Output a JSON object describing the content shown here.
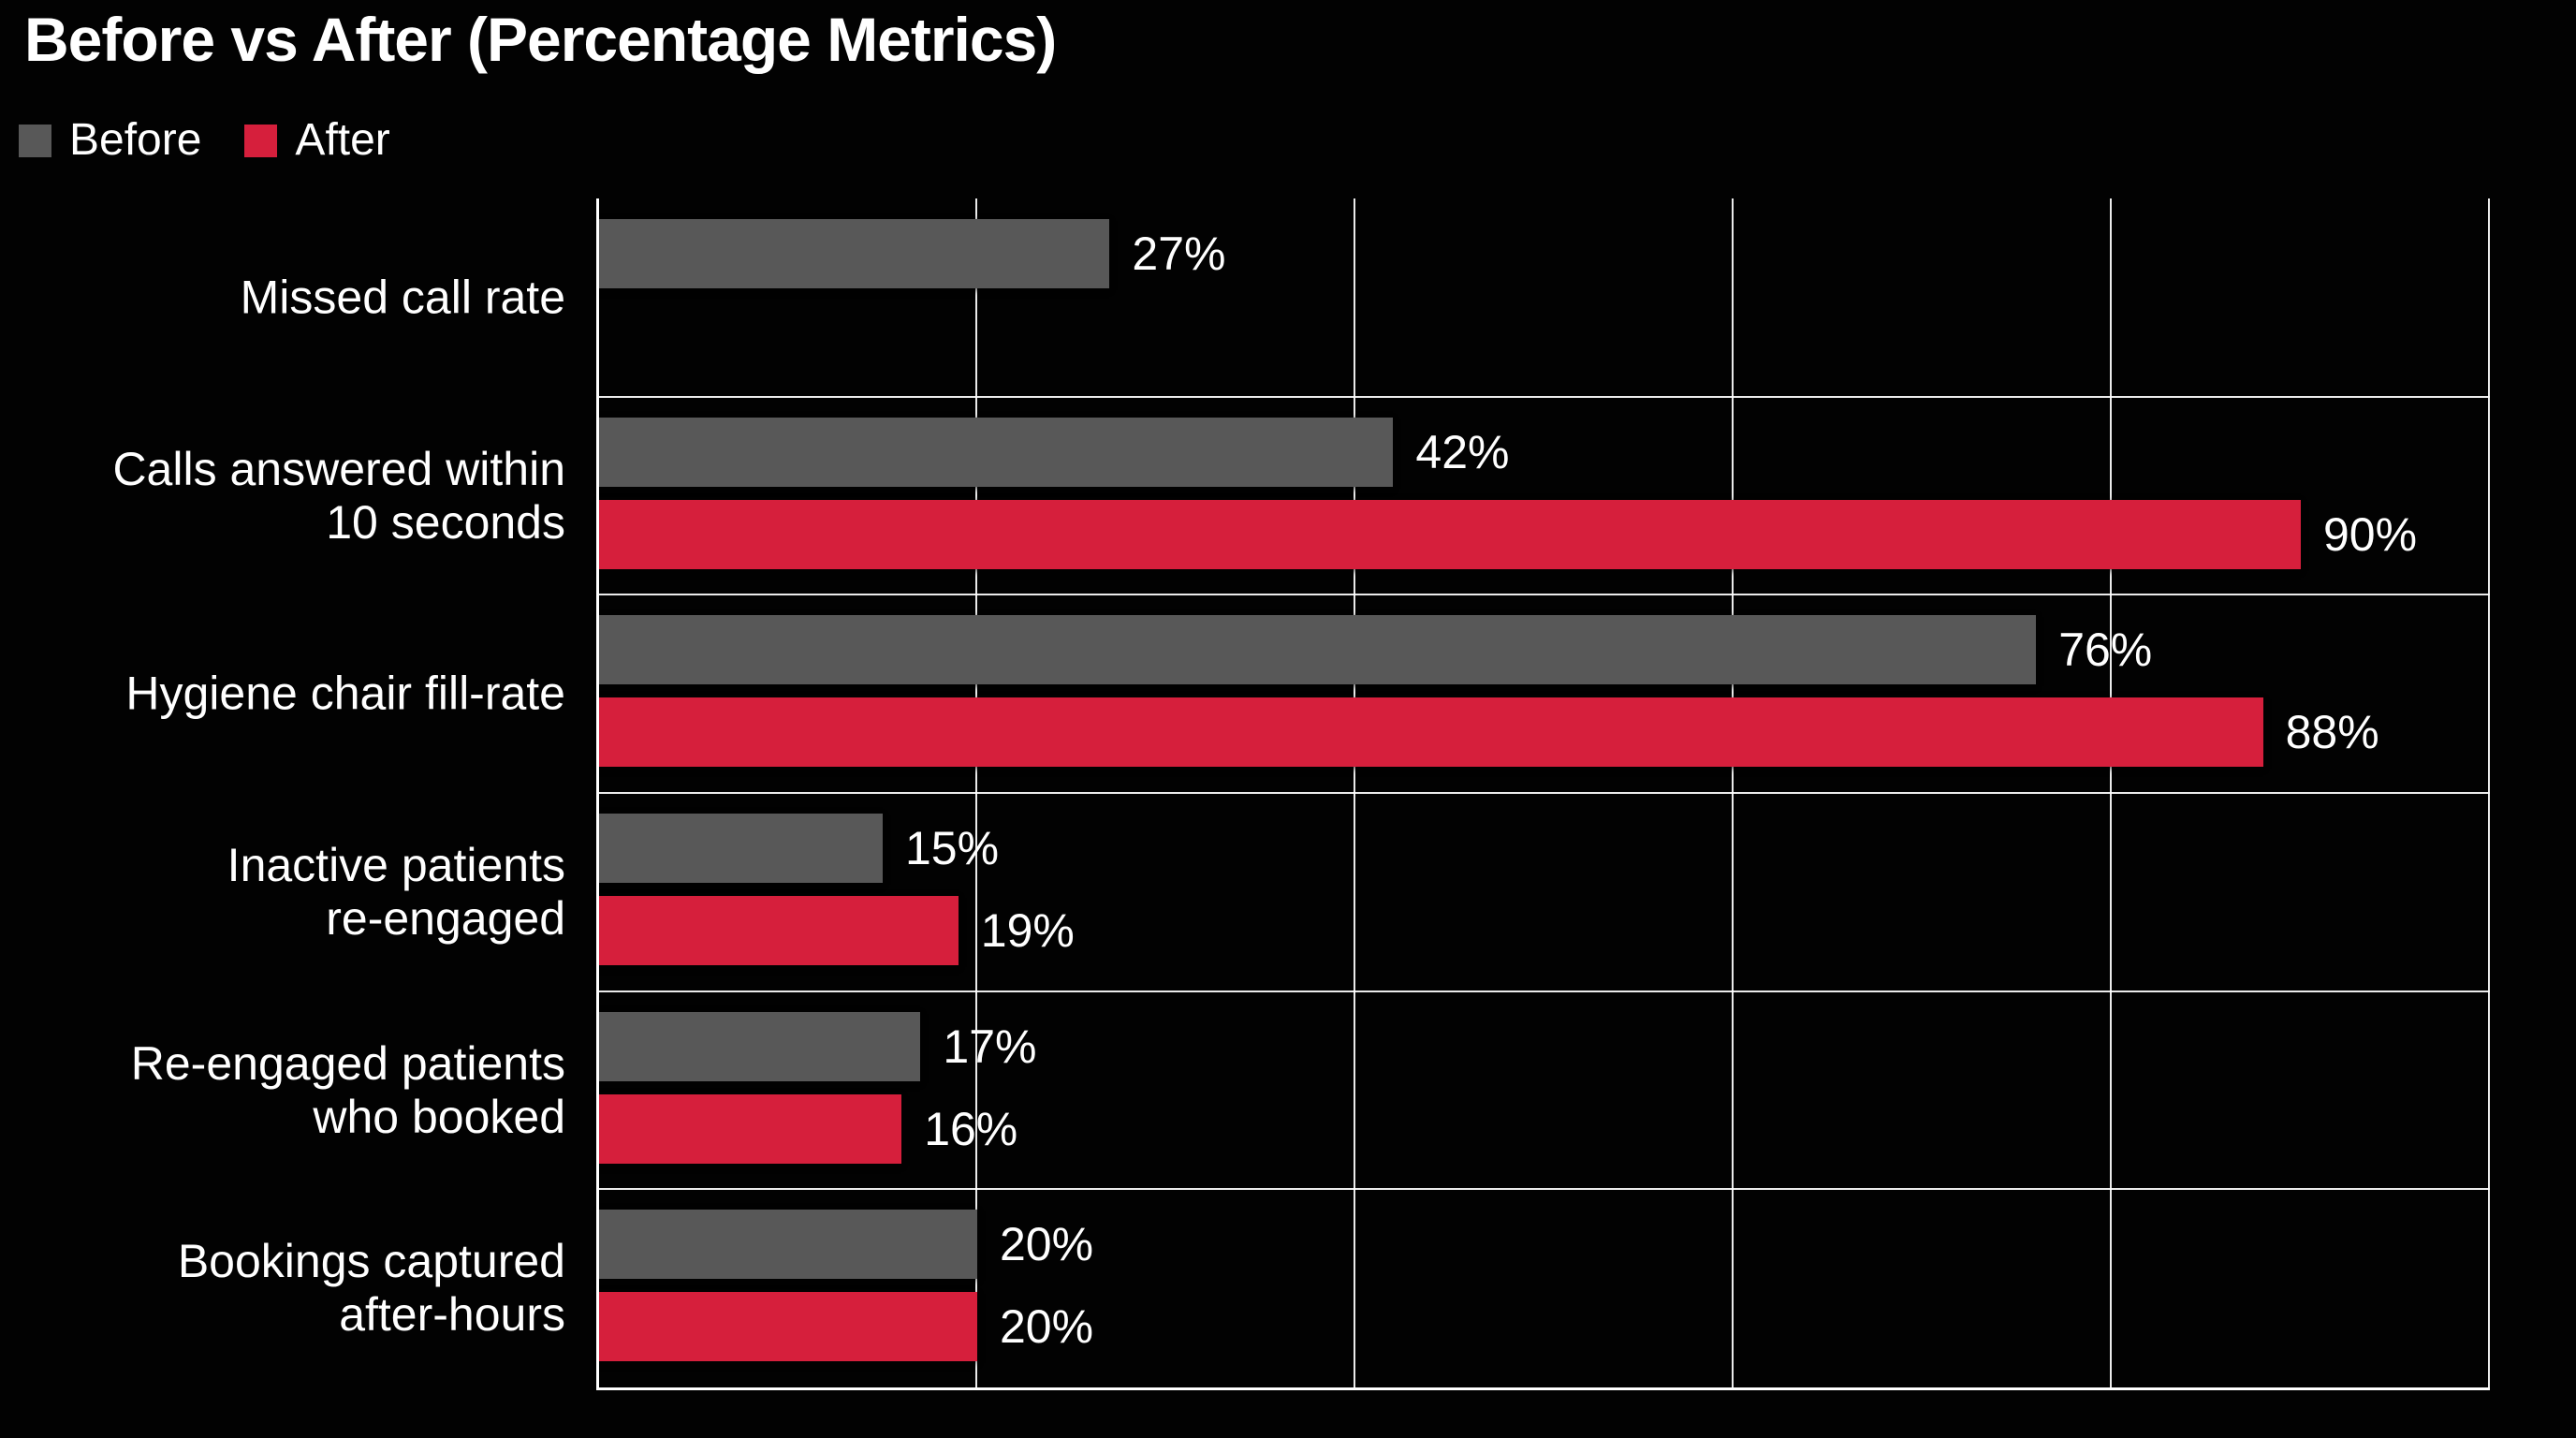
{
  "title": "Before vs After (Percentage Metrics)",
  "legend": {
    "position": "top-left",
    "items": [
      {
        "label": "Before",
        "color": "#585858"
      },
      {
        "label": "After",
        "color": "#d61f3c"
      }
    ]
  },
  "chart_data": {
    "type": "bar",
    "orientation": "horizontal",
    "title": "Before vs After (Percentage Metrics)",
    "unit": "%",
    "xlim": [
      0,
      100
    ],
    "x_gridlines": [
      20,
      40,
      60,
      80,
      100
    ],
    "grid": "on",
    "axis_tick_labels_visible": false,
    "background_color": "#020202",
    "gridline_color": "#ffffff",
    "text_color": "#ffffff",
    "categories": [
      "Missed call rate",
      "Calls answered within\n10 seconds",
      "Hygiene chair fill-rate",
      "Inactive patients\nre-engaged",
      "Re-engaged patients\nwho booked",
      "Bookings captured\nafter-hours"
    ],
    "series": [
      {
        "name": "Before",
        "color": "#585858",
        "values": [
          27,
          42,
          76,
          15,
          17,
          20
        ]
      },
      {
        "name": "After",
        "color": "#d61f3c",
        "values": [
          null,
          90,
          88,
          19,
          16,
          20
        ]
      }
    ],
    "data_labels": {
      "visible": true,
      "format": "{value}%",
      "labels": [
        {
          "category": "Missed call rate",
          "before": "27%",
          "after": null
        },
        {
          "category": "Calls answered within 10 seconds",
          "before": "42%",
          "after": "90%"
        },
        {
          "category": "Hygiene chair fill-rate",
          "before": "76%",
          "after": "88%"
        },
        {
          "category": "Inactive patients re-engaged",
          "before": "15%",
          "after": "19%"
        },
        {
          "category": "Re-engaged patients who booked",
          "before": "17%",
          "after": "16%"
        },
        {
          "category": "Bookings captured after-hours",
          "before": "20%",
          "after": "20%"
        }
      ]
    }
  }
}
